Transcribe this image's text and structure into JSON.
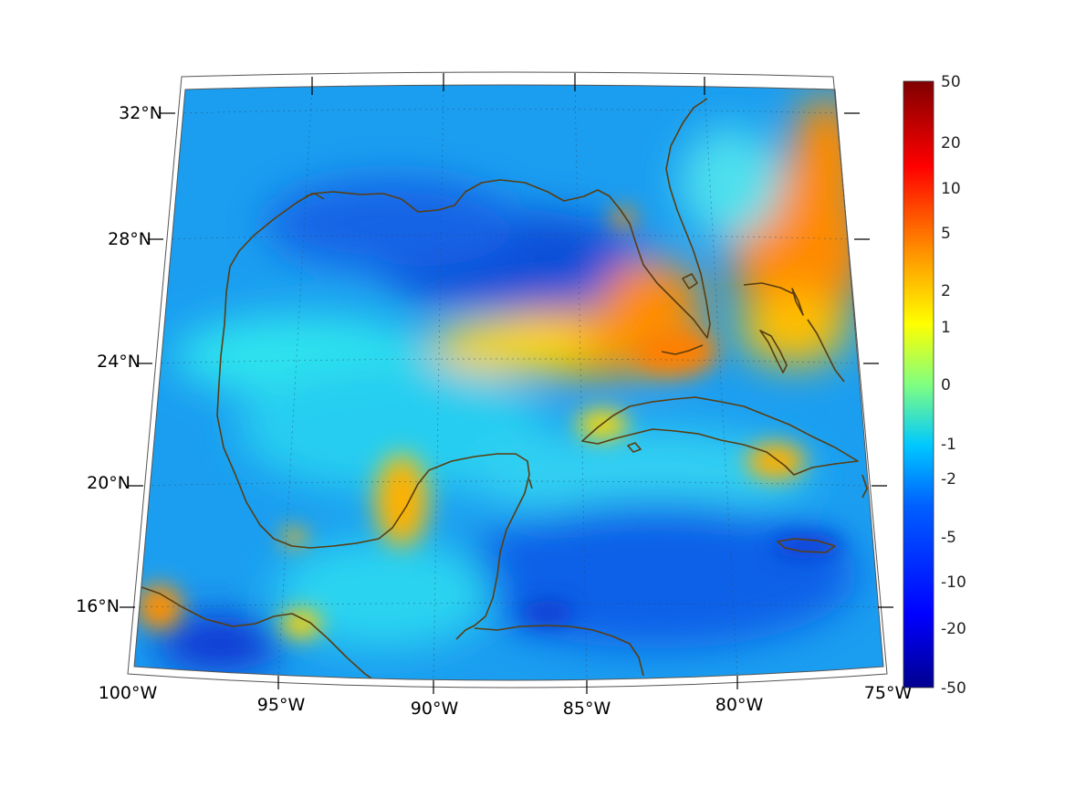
{
  "map": {
    "latitude_labels": [
      "32°N",
      "28°N",
      "24°N",
      "20°N",
      "16°N"
    ],
    "longitude_labels": [
      "100°W",
      "95°W",
      "90°W",
      "85°W",
      "80°W",
      "75°W"
    ],
    "coastline_color": "#5a3d10",
    "grid_style": "dotted",
    "projection": "conic",
    "region": "Gulf of Mexico and Caribbean"
  },
  "colorbar": {
    "tick_labels": [
      "50",
      "20",
      "10",
      "5",
      "2",
      "1",
      "0",
      "-1",
      "-2",
      "-5",
      "-10",
      "-20",
      "-50"
    ],
    "colormap": [
      "#00008f",
      "#0000ff",
      "#0080ff",
      "#00ffff",
      "#80ff80",
      "#ffff00",
      "#ff8000",
      "#ff0000",
      "#800000"
    ]
  }
}
